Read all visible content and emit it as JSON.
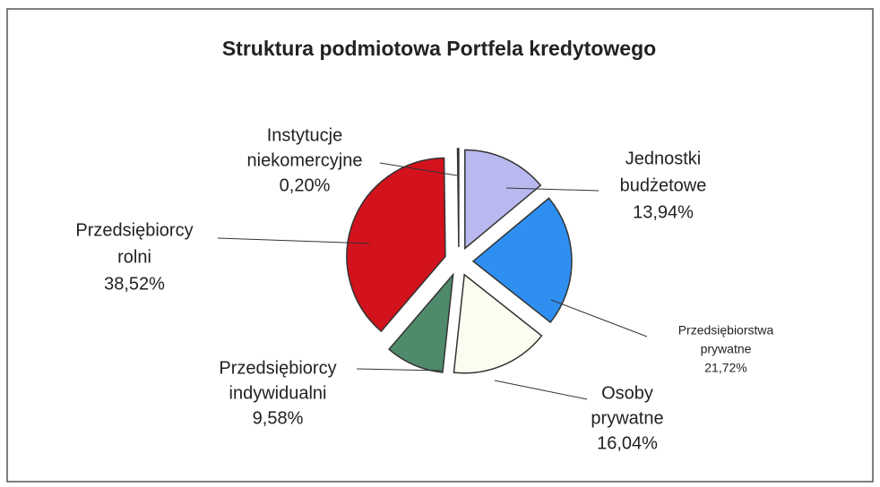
{
  "chart_data": {
    "type": "pie",
    "title": "Struktura podmiotowa  Portfela kredytowego",
    "categories": [
      [
        "Jednostki",
        "budżetowe"
      ],
      [
        "Przedsiębiorstwa",
        "prywatne"
      ],
      [
        "Osoby",
        "prywatne"
      ],
      [
        "Przedsiębiorcy",
        "indywidualni"
      ],
      [
        "Przedsiębiorcy",
        "rolni"
      ],
      [
        "Instytucje",
        "niekomercyjne"
      ]
    ],
    "values": [
      13.94,
      21.72,
      16.04,
      9.58,
      38.52,
      0.2
    ],
    "value_labels": [
      "13,94%",
      "21,72%",
      "16,04%",
      "9,58%",
      "38,52%",
      "0,20%"
    ],
    "colors": [
      "#b9b9f0",
      "#2e8ff0",
      "#fdfcf0",
      "#4f8a6b",
      "#d2121c",
      "#d8d8d8"
    ]
  }
}
